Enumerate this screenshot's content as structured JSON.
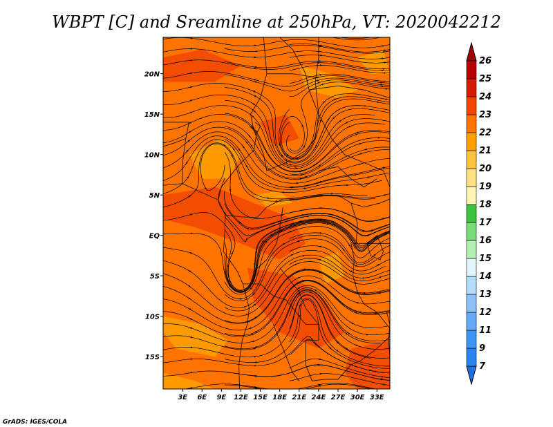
{
  "chart_data": {
    "type": "heatmap",
    "title": "WBPT [C] and Sreamline at 250hPa, VT: 2020042212",
    "variable": "Wet-bulb potential temperature",
    "units": "C",
    "level": "250hPa",
    "valid_time": "2020042212",
    "xlim": [
      0,
      35
    ],
    "ylim": [
      -19,
      24.5
    ],
    "x_ticks": [
      {
        "value": 3,
        "label": "3E"
      },
      {
        "value": 6,
        "label": "6E"
      },
      {
        "value": 9,
        "label": "9E"
      },
      {
        "value": 12,
        "label": "12E"
      },
      {
        "value": 15,
        "label": "15E"
      },
      {
        "value": 18,
        "label": "18E"
      },
      {
        "value": 21,
        "label": "21E"
      },
      {
        "value": 24,
        "label": "24E"
      },
      {
        "value": 27,
        "label": "27E"
      },
      {
        "value": 30,
        "label": "30E"
      },
      {
        "value": 33,
        "label": "33E"
      }
    ],
    "y_ticks": [
      {
        "value": 20,
        "label": "20N"
      },
      {
        "value": 15,
        "label": "15N"
      },
      {
        "value": 10,
        "label": "10N"
      },
      {
        "value": 5,
        "label": "5N"
      },
      {
        "value": 0,
        "label": "EQ"
      },
      {
        "value": -5,
        "label": "5S"
      },
      {
        "value": -10,
        "label": "10S"
      },
      {
        "value": -15,
        "label": "15S"
      }
    ],
    "dominant_range": [
      22,
      24
    ],
    "colorbar": {
      "levels": [
        "7",
        "9",
        "11",
        "12",
        "13",
        "14",
        "15",
        "16",
        "17",
        "18",
        "19",
        "20",
        "21",
        "22",
        "23",
        "24",
        "25",
        "26"
      ],
      "colors": [
        "#1e6ee6",
        "#2a84f0",
        "#3c96f5",
        "#64aaf8",
        "#8cc3fa",
        "#b4dcfd",
        "#e1f5fc",
        "#b4f0b4",
        "#78dc78",
        "#3cc33c",
        "#fff5b4",
        "#ffe182",
        "#ffc340",
        "#ffa000",
        "#ff7300",
        "#f04600",
        "#d21e00",
        "#b40000",
        "#a00000"
      ]
    }
  },
  "credit": "GrADS: IGES/COLA"
}
